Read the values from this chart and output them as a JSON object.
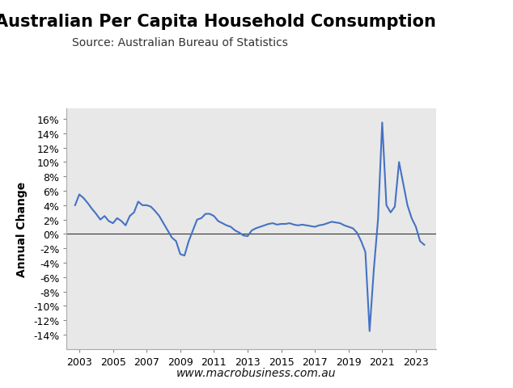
{
  "title": "Australian Per Capita Household Consumption",
  "subtitle": "Source: Australian Bureau of Statistics",
  "ylabel": "Annual Change",
  "website": "www.macrobusiness.com.au",
  "line_color": "#4472C4",
  "plot_bg_color": "#E8E8E8",
  "fig_bg_color": "#FFFFFF",
  "title_fontsize": 15,
  "subtitle_fontsize": 10,
  "ylabel_fontsize": 10,
  "tick_fontsize": 9,
  "logo_bg_color": "#CC0000",
  "logo_text_color": "#FFFFFF",
  "ylim": [
    -0.16,
    0.175
  ],
  "yticks": [
    -0.14,
    -0.12,
    -0.1,
    -0.08,
    -0.06,
    -0.04,
    -0.02,
    0.0,
    0.02,
    0.04,
    0.06,
    0.08,
    0.1,
    0.12,
    0.14,
    0.16
  ],
  "xlim": [
    2002.25,
    2024.2
  ],
  "xticks": [
    2003,
    2005,
    2007,
    2009,
    2011,
    2013,
    2015,
    2017,
    2019,
    2021,
    2023
  ],
  "years": [
    2002.75,
    2003.0,
    2003.25,
    2003.5,
    2003.75,
    2004.0,
    2004.25,
    2004.5,
    2004.75,
    2005.0,
    2005.25,
    2005.5,
    2005.75,
    2006.0,
    2006.25,
    2006.5,
    2006.75,
    2007.0,
    2007.25,
    2007.5,
    2007.75,
    2008.0,
    2008.25,
    2008.5,
    2008.75,
    2009.0,
    2009.25,
    2009.5,
    2009.75,
    2010.0,
    2010.25,
    2010.5,
    2010.75,
    2011.0,
    2011.25,
    2011.5,
    2011.75,
    2012.0,
    2012.25,
    2012.5,
    2012.75,
    2013.0,
    2013.25,
    2013.5,
    2013.75,
    2014.0,
    2014.25,
    2014.5,
    2014.75,
    2015.0,
    2015.25,
    2015.5,
    2015.75,
    2016.0,
    2016.25,
    2016.5,
    2016.75,
    2017.0,
    2017.25,
    2017.5,
    2017.75,
    2018.0,
    2018.25,
    2018.5,
    2018.75,
    2019.0,
    2019.25,
    2019.5,
    2019.75,
    2020.0,
    2020.25,
    2020.5,
    2020.75,
    2021.0,
    2021.25,
    2021.5,
    2021.75,
    2022.0,
    2022.25,
    2022.5,
    2022.75,
    2023.0,
    2023.25,
    2023.5
  ],
  "values": [
    0.04,
    0.055,
    0.05,
    0.043,
    0.035,
    0.028,
    0.02,
    0.025,
    0.018,
    0.015,
    0.022,
    0.018,
    0.012,
    0.025,
    0.03,
    0.045,
    0.04,
    0.04,
    0.038,
    0.032,
    0.025,
    0.015,
    0.005,
    -0.005,
    -0.01,
    -0.028,
    -0.03,
    -0.01,
    0.005,
    0.02,
    0.022,
    0.028,
    0.028,
    0.025,
    0.018,
    0.015,
    0.012,
    0.01,
    0.005,
    0.002,
    -0.002,
    -0.003,
    0.005,
    0.008,
    0.01,
    0.012,
    0.014,
    0.015,
    0.013,
    0.014,
    0.014,
    0.015,
    0.013,
    0.012,
    0.013,
    0.012,
    0.011,
    0.01,
    0.012,
    0.013,
    0.015,
    0.017,
    0.016,
    0.015,
    0.012,
    0.01,
    0.008,
    0.002,
    -0.01,
    -0.025,
    -0.135,
    -0.05,
    0.02,
    0.155,
    0.04,
    0.03,
    0.038,
    0.1,
    0.07,
    0.04,
    0.022,
    0.01,
    -0.01,
    -0.015
  ]
}
